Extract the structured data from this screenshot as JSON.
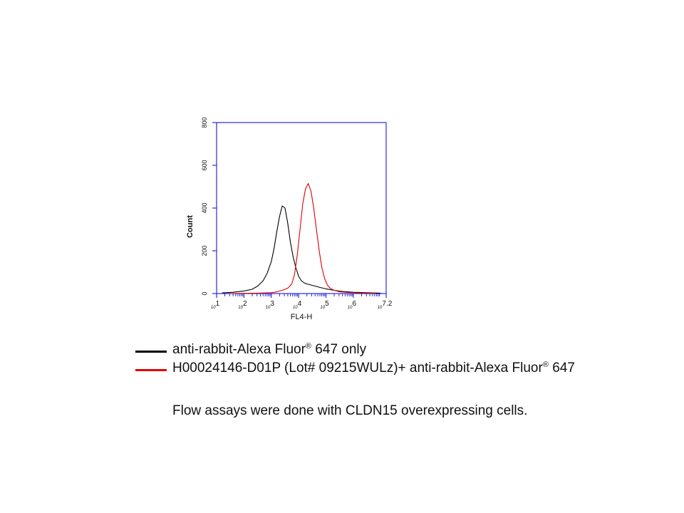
{
  "chart_data": {
    "type": "line",
    "title": "",
    "xlabel": "FL4-H",
    "ylabel": "Count",
    "x_scale": "log",
    "xlim": [
      1,
      7.2
    ],
    "ylim": [
      0,
      800
    ],
    "x_ticks": [
      {
        "value": 1,
        "label": "10",
        "exp": "1"
      },
      {
        "value": 2,
        "label": "10",
        "exp": "2"
      },
      {
        "value": 3,
        "label": "10",
        "exp": "3"
      },
      {
        "value": 4,
        "label": "10",
        "exp": "4"
      },
      {
        "value": 5,
        "label": "10",
        "exp": "5"
      },
      {
        "value": 6,
        "label": "10",
        "exp": "6"
      },
      {
        "value": 7.2,
        "label": "10",
        "exp": "7.2"
      }
    ],
    "y_ticks": [
      0,
      200,
      400,
      600,
      800
    ],
    "grid": false,
    "series": [
      {
        "color": "#000000",
        "x": [
          1.2,
          1.6,
          2.0,
          2.3,
          2.5,
          2.7,
          2.85,
          3.0,
          3.1,
          3.2,
          3.3,
          3.4,
          3.5,
          3.6,
          3.7,
          3.8,
          3.9,
          4.0,
          4.1,
          4.2,
          4.3,
          4.45,
          4.6,
          4.8,
          5.0,
          5.3,
          5.6,
          6.0,
          6.5,
          7.0
        ],
        "y": [
          3,
          6,
          12,
          20,
          35,
          60,
          95,
          150,
          210,
          290,
          360,
          410,
          400,
          330,
          240,
          170,
          120,
          80,
          60,
          50,
          45,
          40,
          35,
          28,
          22,
          15,
          10,
          6,
          4,
          2
        ]
      },
      {
        "color": "#e00000",
        "x": [
          1.5,
          2.5,
          3.0,
          3.2,
          3.4,
          3.6,
          3.75,
          3.85,
          3.95,
          4.05,
          4.15,
          4.25,
          4.35,
          4.45,
          4.55,
          4.65,
          4.75,
          4.85,
          4.95,
          5.05,
          5.15,
          5.3,
          5.5,
          5.8,
          6.2,
          6.8
        ],
        "y": [
          0,
          2,
          4,
          8,
          15,
          25,
          45,
          90,
          180,
          300,
          420,
          490,
          515,
          480,
          400,
          300,
          200,
          120,
          70,
          40,
          25,
          15,
          8,
          5,
          3,
          2
        ]
      }
    ]
  },
  "legend": [
    {
      "text": "anti-rabbit-Alexa Fluor",
      "mark": "®",
      "suffix": " 647 only",
      "color": "#000000"
    },
    {
      "text": "H00024146-D01P  (Lot# 09215WULz)+ anti-rabbit-Alexa Fluor",
      "mark": "®",
      "suffix": " 647",
      "color": "#e00000"
    }
  ],
  "footnote": "Flow assays were done with CLDN15 overexpressing cells."
}
